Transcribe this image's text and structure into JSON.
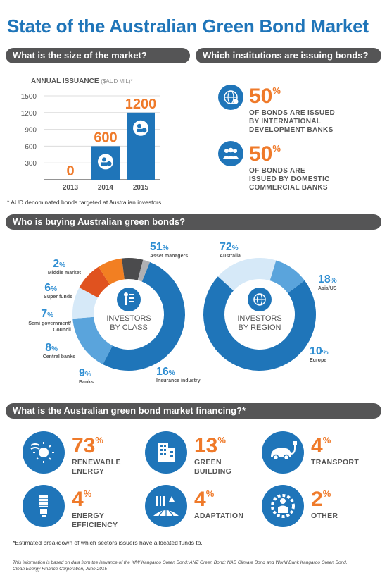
{
  "title": "State of the Australian Green Bond Market",
  "sections": {
    "size": "What is the size of the market?",
    "institutions": "Which institutions are issuing bonds?",
    "buyers": "Who is buying Australian green bonds?",
    "financing": "What is the Australian green bond market financing?*"
  },
  "issuance": {
    "label": "ANNUAL ISSUANCE",
    "unit": "($AUD MIL)*",
    "value_labels": [
      "0",
      "600",
      "1200"
    ],
    "footnote": "* AUD denominated bonds targeted at Australian investors"
  },
  "chart_data": [
    {
      "type": "bar",
      "title": "ANNUAL ISSUANCE ($AUD MIL)*",
      "categories": [
        "2013",
        "2014",
        "2015"
      ],
      "values": [
        0,
        600,
        1200
      ],
      "yticks": [
        "300",
        "600",
        "900",
        "1200",
        "1500"
      ],
      "ylim": [
        0,
        1500
      ],
      "color": "#1f75b9",
      "grid": true
    },
    {
      "type": "pie",
      "center_label": "INVESTORS BY CLASS",
      "slices": [
        {
          "pct": "51",
          "name": "Asset managers",
          "value": 51,
          "color": "#1f75b9"
        },
        {
          "pct": "16",
          "name": "Insurance industry",
          "value": 16,
          "color": "#5aa4dc"
        },
        {
          "pct": "9",
          "name": "Banks",
          "value": 9,
          "color": "#d6e9f8"
        },
        {
          "pct": "8",
          "name": "Central banks",
          "value": 8,
          "color": "#e0521f"
        },
        {
          "pct": "7",
          "name": "Semi government/ Council",
          "value": 7,
          "color": "#f27f22"
        },
        {
          "pct": "6",
          "name": "Super funds",
          "value": 6,
          "color": "#4b4b4d"
        },
        {
          "pct": "2",
          "name": "Middle market",
          "value": 2,
          "color": "#b0b0b3"
        }
      ]
    },
    {
      "type": "pie",
      "center_label": "INVESTORS BY REGION",
      "slices": [
        {
          "pct": "72",
          "name": "Australia",
          "value": 72,
          "color": "#1f75b9"
        },
        {
          "pct": "18",
          "name": "Asia/US",
          "value": 18,
          "color": "#d6e9f8"
        },
        {
          "pct": "10",
          "name": "Europe",
          "value": 10,
          "color": "#5aa4dc"
        }
      ]
    }
  ],
  "institutions": [
    {
      "pct": "50",
      "text1": "OF BONDS ARE ISSUED",
      "text2": "BY INTERNATIONAL",
      "text3": "DEVELOPMENT BANKS",
      "icon": "globe-icon"
    },
    {
      "pct": "50",
      "text1": "OF BONDS ARE",
      "text2": "ISSUED BY DOMESTIC",
      "text3": "COMMERCIAL BANKS",
      "icon": "people-icon"
    }
  ],
  "class_center": {
    "line1": "INVESTORS",
    "line2": "BY CLASS"
  },
  "region_center": {
    "line1": "INVESTORS",
    "line2": "BY REGION"
  },
  "financing": [
    {
      "pct": "73",
      "l1": "RENEWABLE",
      "l2": "ENERGY",
      "icon": "sun-wind-icon"
    },
    {
      "pct": "13",
      "l1": "GREEN",
      "l2": "BUILDING",
      "icon": "building-icon"
    },
    {
      "pct": "4",
      "l1": "TRANSPORT",
      "l2": "",
      "icon": "electric-car-icon"
    },
    {
      "pct": "4",
      "l1": "ENERGY",
      "l2": "EFFICIENCY",
      "icon": "light-bulb-icon"
    },
    {
      "pct": "4",
      "l1": "ADAPTATION",
      "l2": "",
      "icon": "farm-icon"
    },
    {
      "pct": "2",
      "l1": "OTHER",
      "l2": "",
      "icon": "gear-person-icon"
    }
  ],
  "financing_note": "*Estimated breakdown of which sectors issuers have allocated funds to.",
  "source_line1": "This information is based on data from the issuance of the KfW Kangaroo Green Bond; ANZ Green Bond; NAB Climate Bond and World Bank Kangaroo Green Bond.",
  "source_line2": "Clean Energy Finance Corporation, June 2015",
  "pct_symbol": "%"
}
